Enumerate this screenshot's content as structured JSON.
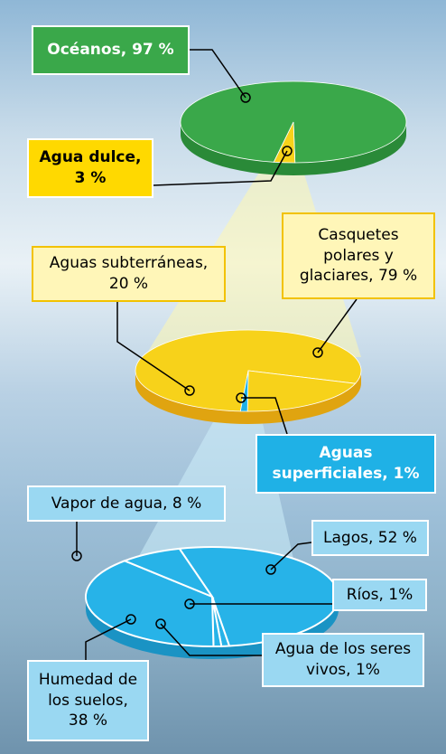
{
  "chart_data": [
    {
      "type": "pie",
      "values": [
        97,
        3
      ],
      "value_labels": [
        "Océanos, 97 %",
        "Agua dulce, 3 %"
      ],
      "colors": [
        "#3aa84a",
        "#f7d21a"
      ]
    },
    {
      "type": "pie",
      "values": [
        79,
        20,
        1
      ],
      "value_labels": [
        "Casquetes polares y glaciares, 79 %",
        "Aguas subterráneas, 20 %",
        "Aguas superficiales, 1%"
      ],
      "colors": [
        "#f7d21a",
        "#f7d21a",
        "#1fb1e6"
      ]
    },
    {
      "type": "pie",
      "values": [
        52,
        1,
        1,
        38,
        8
      ],
      "value_labels": [
        "Lagos, 52 %",
        "Ríos, 1%",
        "Agua de los seres vivos, 1%",
        "Humedad de los suelos, 38 %",
        "Vapor de agua, 8 %"
      ],
      "colors": [
        "#27b3e8",
        "#27b3e8",
        "#27b3e8",
        "#27b3e8",
        "#27b3e8"
      ]
    }
  ]
}
